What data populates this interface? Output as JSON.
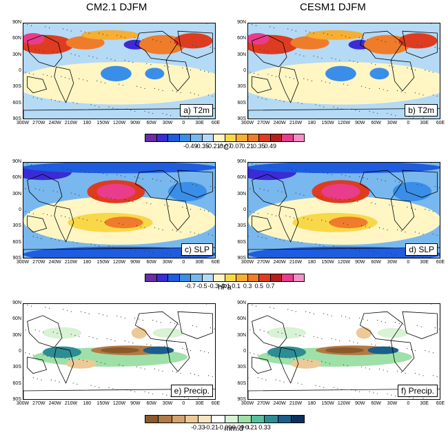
{
  "columns": [
    "CM2.1 DJFM",
    "CESM1 DJFM"
  ],
  "lat_labels": [
    "90N",
    "60N",
    "30N",
    "0",
    "30S",
    "60S",
    "90S"
  ],
  "lon_labels": [
    "300W",
    "270W",
    "240W",
    "210W",
    "180",
    "150W",
    "120W",
    "90W",
    "60W",
    "30W",
    "0",
    "30E",
    "60E"
  ],
  "panels": [
    {
      "label": "a) T2m"
    },
    {
      "label": "b) T2m"
    },
    {
      "label": "c) SLP"
    },
    {
      "label": "d) SLP"
    },
    {
      "label": "e) Precip."
    },
    {
      "label": "f) Precip."
    }
  ],
  "colorbars": [
    {
      "unit": "°C",
      "ticks": [
        "-0.49",
        "-0.35",
        "-0.21",
        "-0.07",
        "0.07",
        "0.21",
        "0.35",
        "0.49"
      ],
      "colors": [
        "#6a2ca8",
        "#3a2bd6",
        "#1e5ce0",
        "#3a8ee8",
        "#78b8ee",
        "#b4daf5",
        "#fff6c4",
        "#f8d848",
        "#f6ae33",
        "#ef7c2a",
        "#de3c20",
        "#b81e1e",
        "#e93c8a",
        "#f78fc6"
      ]
    },
    {
      "unit": "hPa",
      "ticks": [
        "-0.7",
        "-0.5",
        "-0.3",
        "-0.1",
        "0.1",
        "0.3",
        "0.5",
        "0.7"
      ],
      "colors": [
        "#6a2ca8",
        "#3a2bd6",
        "#1e5ce0",
        "#3a8ee8",
        "#78b8ee",
        "#b4daf5",
        "#fff6c4",
        "#f8d848",
        "#f6ae33",
        "#ef7c2a",
        "#de3c20",
        "#b81e1e",
        "#e93c8a",
        "#f78fc6"
      ]
    },
    {
      "unit": "mm.d⁻¹",
      "ticks": [
        "-0.33",
        "-0.21",
        "-0.09",
        "0.09",
        "0.21",
        "0.33"
      ],
      "colors": [
        "#8a5a2b",
        "#b27a45",
        "#d4a36e",
        "#ecc996",
        "#f6e6c0",
        "#ffffff",
        "#d8f2d4",
        "#9ee0a8",
        "#58c0a0",
        "#2c8e94",
        "#1a5e8c",
        "#0c3060"
      ]
    }
  ]
}
